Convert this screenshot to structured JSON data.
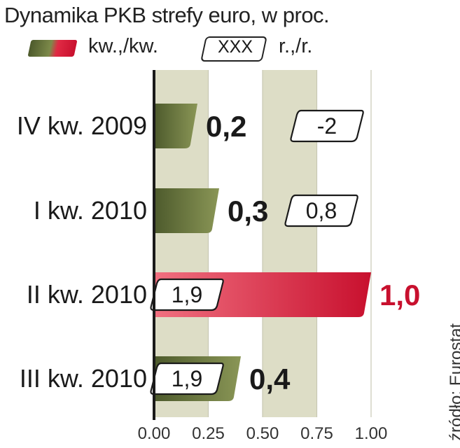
{
  "chart_data": {
    "type": "bar",
    "title": "Dynamika PKB strefy euro, w proc.",
    "legend": {
      "qq_label": "kw.,/kw.",
      "yy_box_label": "XXX",
      "yy_label": "r.,/r."
    },
    "categories": [
      "IV kw. 2009",
      "I kw. 2010",
      "II kw. 2010",
      "III kw. 2010"
    ],
    "series": [
      {
        "name": "kw.,/kw.",
        "values": [
          0.2,
          0.3,
          1.0,
          0.4
        ],
        "value_labels": [
          "0,2",
          "0,3",
          "1,0",
          "0,4"
        ]
      },
      {
        "name": "r.,/r.",
        "values": [
          -2,
          0.8,
          1.9,
          1.9
        ],
        "value_labels": [
          "-2",
          "0,8",
          "1,9",
          "1,9"
        ]
      }
    ],
    "highlight_index": 2,
    "xlim": [
      0,
      1
    ],
    "xticks": [
      "0.00",
      "0.25",
      "0.50",
      "0.75",
      "1.00"
    ],
    "grid": true,
    "colors": {
      "bar_dark": "#4d5a2c",
      "bar_light": "#8a9656",
      "highlight_dark": "#c8102e",
      "highlight_light": "#f07080",
      "highlight_text": "#c8102e",
      "band": "#ddddc6"
    },
    "source": "źródło: Eurostat"
  }
}
